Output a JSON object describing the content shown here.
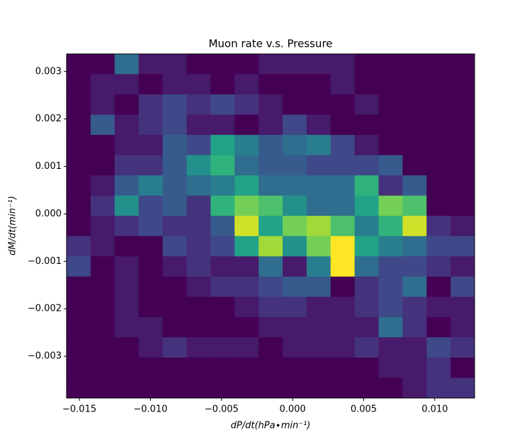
{
  "chart_data": {
    "type": "hist2d",
    "title": "Muon rate v.s. Pressure",
    "x_label": "dP/dt(hPa∙min⁻¹)",
    "y_label": "dM/dt(min⁻¹)",
    "colormap": "viridis",
    "xlim": [
      -0.0159,
      0.0128
    ],
    "ylim": [
      -0.00388,
      0.00337
    ],
    "xticks": [
      {
        "value": -0.015,
        "label": "−0.015"
      },
      {
        "value": -0.01,
        "label": "−0.010"
      },
      {
        "value": -0.005,
        "label": "−0.005"
      },
      {
        "value": 0,
        "label": "0.000"
      },
      {
        "value": 0.005,
        "label": "0.005"
      },
      {
        "value": 0.01,
        "label": "0.010"
      }
    ],
    "yticks": [
      {
        "value": 0.003,
        "label": "0.003"
      },
      {
        "value": 0.002,
        "label": "0.002"
      },
      {
        "value": 0.001,
        "label": "0.001"
      },
      {
        "value": 0,
        "label": "0.000"
      },
      {
        "value": -0.001,
        "label": "−0.001"
      },
      {
        "value": -0.002,
        "label": "−0.002"
      },
      {
        "value": -0.003,
        "label": "−0.003"
      }
    ],
    "values": [
      [
        0,
        0,
        5,
        1,
        1,
        0,
        0,
        0,
        1,
        1,
        1,
        1,
        0,
        0,
        0,
        0,
        0
      ],
      [
        0,
        1,
        1,
        0,
        1,
        1,
        0,
        1,
        0,
        0,
        0,
        1,
        0,
        0,
        0,
        0,
        0
      ],
      [
        0,
        1,
        0,
        2,
        3,
        2,
        3,
        2,
        1,
        0,
        0,
        0,
        1,
        0,
        0,
        0,
        0
      ],
      [
        0,
        4,
        1,
        2,
        3,
        1,
        1,
        0,
        1,
        3,
        1,
        0,
        0,
        0,
        0,
        0,
        0
      ],
      [
        0,
        0,
        1,
        1,
        4,
        3,
        8,
        6,
        4,
        5,
        6,
        3,
        1,
        0,
        0,
        0,
        0
      ],
      [
        0,
        0,
        2,
        2,
        4,
        7,
        9,
        5,
        4,
        4,
        3,
        3,
        3,
        4,
        0,
        0,
        0
      ],
      [
        0,
        1,
        4,
        6,
        4,
        5,
        6,
        8,
        5,
        5,
        5,
        5,
        9,
        2,
        4,
        0,
        0
      ],
      [
        0,
        2,
        7,
        3,
        4,
        2,
        9,
        11,
        10,
        7,
        5,
        5,
        8,
        11,
        10,
        0,
        0
      ],
      [
        0,
        1,
        2,
        3,
        2,
        2,
        4,
        13,
        8,
        11,
        12,
        10,
        6,
        9,
        13,
        2,
        1
      ],
      [
        2,
        1,
        0,
        0,
        3,
        2,
        3,
        8,
        12,
        7,
        11,
        14,
        8,
        6,
        5,
        3,
        3
      ],
      [
        3,
        0,
        1,
        0,
        1,
        2,
        1,
        1,
        5,
        1,
        6,
        14,
        5,
        3,
        3,
        2,
        1
      ],
      [
        0,
        0,
        1,
        0,
        0,
        1,
        2,
        2,
        3,
        4,
        4,
        0,
        2,
        3,
        5,
        0,
        3
      ],
      [
        0,
        0,
        1,
        0,
        0,
        0,
        0,
        1,
        2,
        2,
        1,
        1,
        2,
        3,
        2,
        1,
        1
      ],
      [
        0,
        0,
        1,
        1,
        0,
        0,
        0,
        0,
        1,
        1,
        1,
        1,
        1,
        5,
        2,
        0,
        1
      ],
      [
        0,
        0,
        0,
        1,
        2,
        1,
        1,
        1,
        0,
        1,
        1,
        1,
        2,
        1,
        1,
        3,
        2
      ],
      [
        0,
        0,
        0,
        0,
        0,
        0,
        0,
        0,
        0,
        0,
        0,
        0,
        0,
        1,
        1,
        2,
        0
      ],
      [
        0,
        0,
        0,
        0,
        0,
        0,
        0,
        0,
        0,
        0,
        0,
        0,
        0,
        0,
        1,
        2,
        2
      ]
    ]
  }
}
